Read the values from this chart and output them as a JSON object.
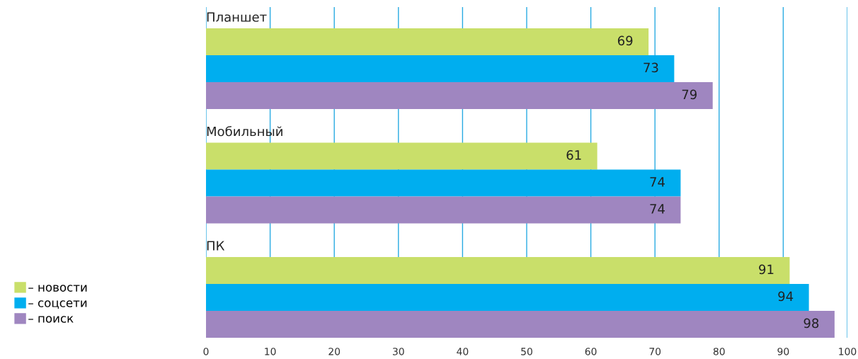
{
  "chart_data": {
    "type": "bar",
    "orientation": "horizontal",
    "categories": [
      "Планшет",
      "Мобильный",
      "ПК"
    ],
    "series": [
      {
        "name": "– новости",
        "color": "#c9df6a",
        "values": [
          69,
          61,
          91
        ]
      },
      {
        "name": "– соцсети",
        "color": "#00aeef",
        "values": [
          73,
          74,
          94
        ]
      },
      {
        "name": "– поиск",
        "color": "#9f86c0",
        "values": [
          79,
          74,
          98
        ]
      }
    ],
    "xlim": [
      0,
      100
    ],
    "xticks": [
      0,
      10,
      20,
      30,
      40,
      50,
      60,
      70,
      80,
      90,
      100
    ],
    "grid": "x",
    "data_labels": true,
    "legend": "bottom left"
  }
}
